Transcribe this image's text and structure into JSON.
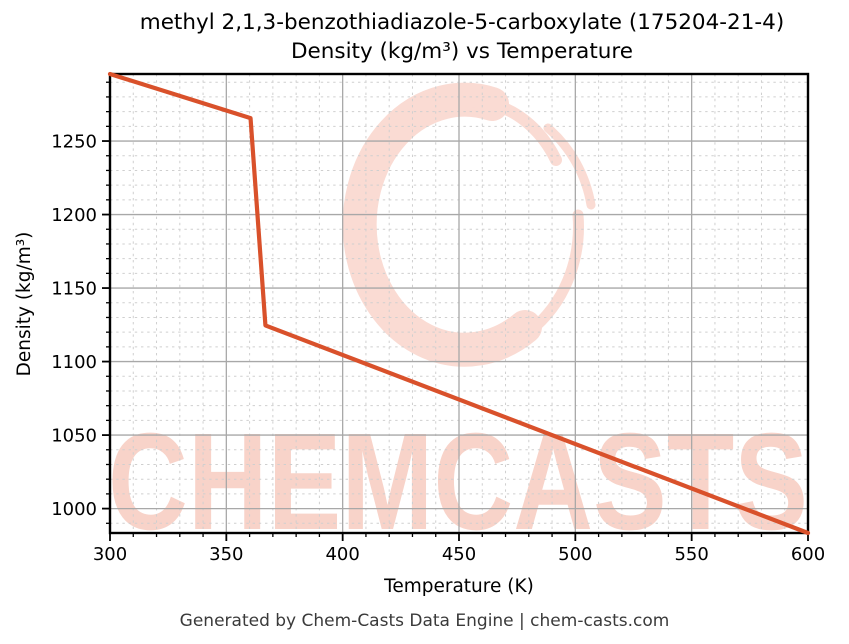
{
  "title": {
    "line1": "methyl 2,1,3-benzothiadiazole-5-carboxylate (175204-21-4)",
    "line2": "Density (kg/m³) vs Temperature"
  },
  "footer": "Generated by Chem-Casts Data Engine | chem-casts.com",
  "watermark": {
    "text": "CHEMCASTS",
    "text_color": "#f8d3c9",
    "logo_color": "#fadbd3"
  },
  "colors": {
    "line": "#d9512b",
    "grid_major": "#a8a8a8",
    "grid_minor": "#cfcfcf",
    "spine": "#000000",
    "footer_text": "#3a3a3a"
  },
  "chart_data": {
    "type": "line",
    "title": "methyl 2,1,3-benzothiadiazole-5-carboxylate (175204-21-4) Density (kg/m³) vs Temperature",
    "xlabel": "Temperature (K)",
    "ylabel": "Density (kg/m³)",
    "xlim": [
      300,
      600
    ],
    "ylim": [
      983.4,
      1295.6
    ],
    "x_major_ticks": [
      300,
      350,
      400,
      450,
      500,
      550,
      600
    ],
    "y_major_ticks": [
      1000,
      1050,
      1100,
      1150,
      1200,
      1250
    ],
    "minor_tick_step_x": 10,
    "minor_tick_step_y": 10,
    "grid": {
      "major": true,
      "minor": true
    },
    "legend_position": "none",
    "line_color": "#d9512b",
    "series": [
      {
        "name": "Density (kg/m³)",
        "points": [
          [
            300,
            1295.6
          ],
          [
            360.4,
            1265.6
          ],
          [
            366.8,
            1124.6
          ],
          [
            600,
            983.4
          ]
        ]
      }
    ]
  }
}
